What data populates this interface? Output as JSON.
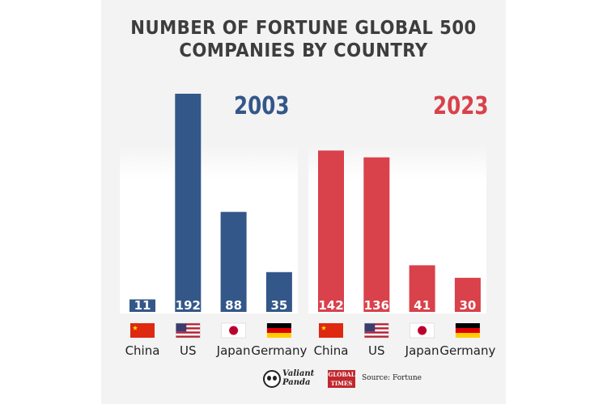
{
  "title_line1": "NUMBER OF FORTUNE GLOBAL 500",
  "title_line2": "COMPANIES BY COUNTRY",
  "source": "Source: Fortune",
  "logos": {
    "valiant_line1": "Valiant",
    "valiant_line2": "Panda",
    "gt_line1": "GLOBAL",
    "gt_line2": "TIMES"
  },
  "colors": {
    "y2003": "#34578a",
    "y2023": "#d9414b"
  },
  "chart_data": [
    {
      "type": "bar",
      "title": "2003",
      "categories": [
        "China",
        "US",
        "Japan",
        "Germany"
      ],
      "values": [
        11,
        192,
        88,
        35
      ],
      "ylim": [
        0,
        192
      ],
      "grid": false
    },
    {
      "type": "bar",
      "title": "2023",
      "categories": [
        "China",
        "US",
        "Japan",
        "Germany"
      ],
      "values": [
        142,
        136,
        41,
        30
      ],
      "ylim": [
        0,
        192
      ],
      "grid": false
    }
  ]
}
